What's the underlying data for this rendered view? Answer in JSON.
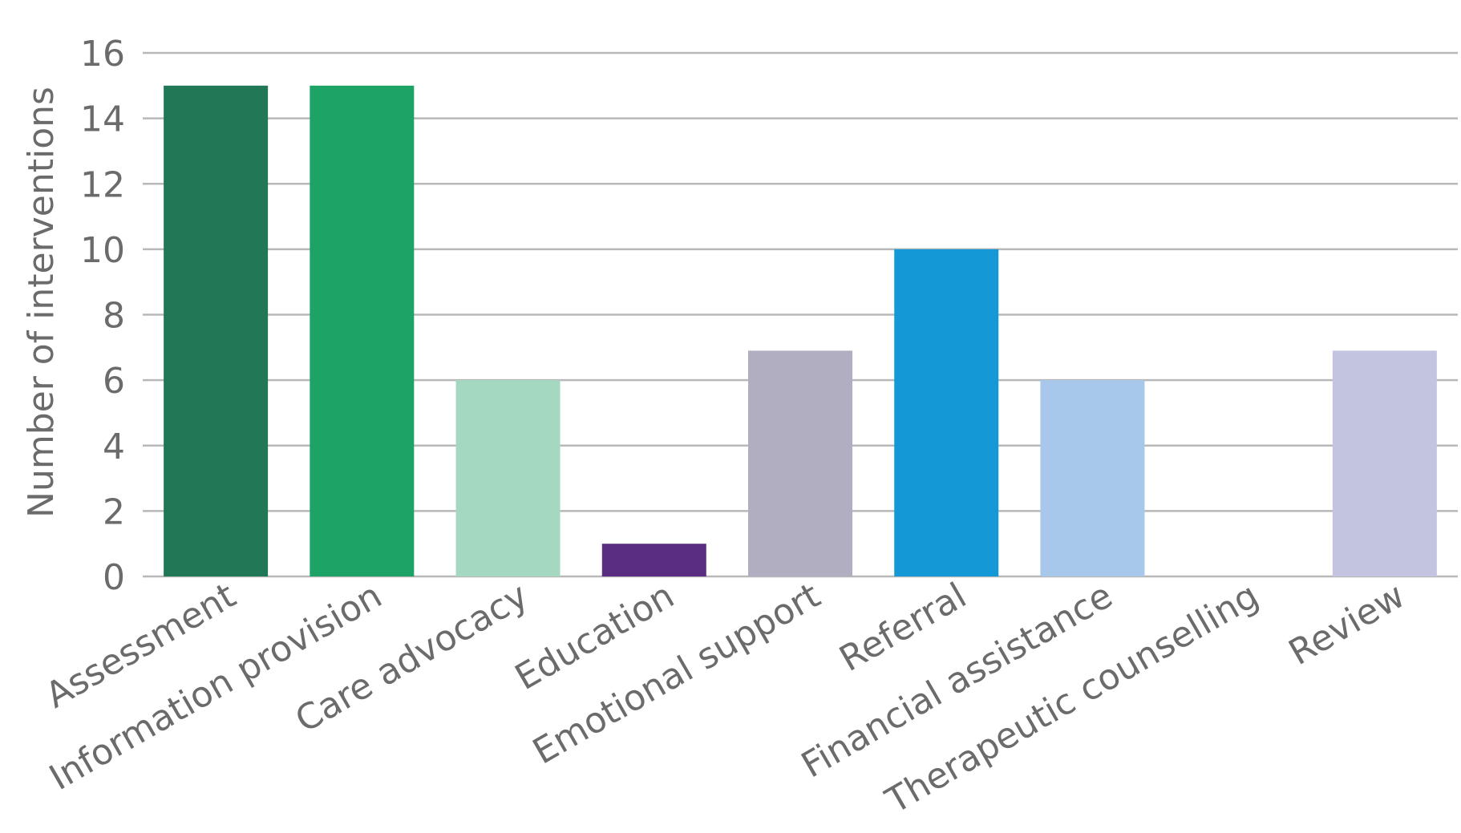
{
  "chart_data": {
    "type": "bar",
    "title": "",
    "xlabel": "",
    "ylabel": "Number of interventions",
    "ylim": [
      0,
      16
    ],
    "yticks": [
      0,
      2,
      4,
      6,
      8,
      10,
      12,
      14,
      16
    ],
    "grid": true,
    "categories": [
      "Assessment",
      "Information provision",
      "Care advocacy",
      "Education",
      "Emotional support",
      "Referral",
      "Financial assistance",
      "Therapeutic counselling",
      "Review"
    ],
    "values": [
      15,
      15,
      6,
      1,
      6.9,
      10,
      6,
      0,
      6.9
    ],
    "colors": [
      "#217857",
      "#1ea366",
      "#a5d8c1",
      "#5a2c82",
      "#b2aec2",
      "#1599d6",
      "#a7c8ea",
      "#ffffff",
      "#c3c5e0"
    ]
  }
}
